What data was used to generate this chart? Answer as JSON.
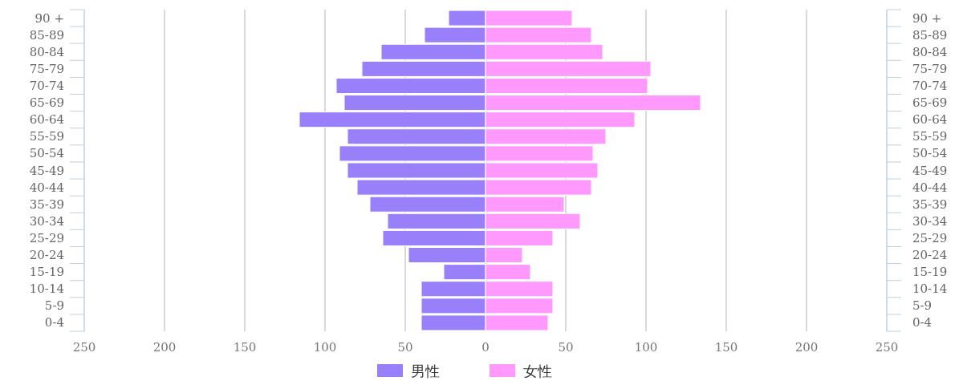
{
  "chart_data": {
    "type": "bar",
    "orientation": "horizontal",
    "stacked": true,
    "categories": [
      "90 +",
      "85-89",
      "80-84",
      "75-79",
      "70-74",
      "65-69",
      "60-64",
      "55-59",
      "50-54",
      "45-49",
      "40-44",
      "35-39",
      "30-34",
      "25-29",
      "20-24",
      "15-19",
      "10-14",
      "5-9",
      "0-4"
    ],
    "series": [
      {
        "name": "男性",
        "color": "#9a7ffb",
        "values": [
          -23,
          -38,
          -65,
          -77,
          -93,
          -88,
          -116,
          -86,
          -91,
          -86,
          -80,
          -72,
          -61,
          -64,
          -48,
          -26,
          -40,
          -40,
          -40
        ]
      },
      {
        "name": "女性",
        "color": "#ff99fd",
        "values": [
          54,
          66,
          73,
          103,
          101,
          134,
          93,
          75,
          67,
          70,
          66,
          49,
          59,
          42,
          23,
          28,
          42,
          42,
          39
        ]
      }
    ],
    "xlim": [
      -250,
      250
    ],
    "xticks": [
      {
        "value": -250,
        "label": "250"
      },
      {
        "value": -200,
        "label": "200"
      },
      {
        "value": -150,
        "label": "150"
      },
      {
        "value": -100,
        "label": "100"
      },
      {
        "value": -50,
        "label": "50"
      },
      0,
      50,
      100,
      150,
      200,
      250
    ],
    "grid": "x",
    "legend": "bottom"
  }
}
